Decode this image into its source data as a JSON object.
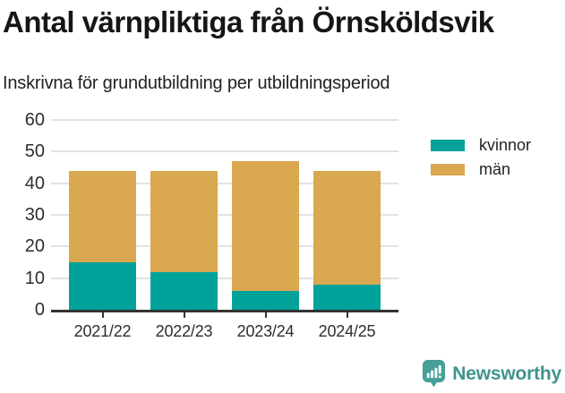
{
  "header": {
    "title": "Antal värnpliktiga från Örnsköldsvik",
    "subtitle": "Inskrivna för grundutbildning per utbildningsperiod"
  },
  "chart_data": {
    "type": "bar",
    "stacked": true,
    "categories": [
      "2021/22",
      "2022/23",
      "2023/24",
      "2024/25"
    ],
    "series": [
      {
        "name": "kvinnor",
        "color": "#00a29a",
        "values": [
          15,
          12,
          6,
          8
        ]
      },
      {
        "name": "män",
        "color": "#d9a850",
        "values": [
          29,
          32,
          41,
          36
        ]
      }
    ],
    "stack_totals": [
      44,
      44,
      47,
      44
    ],
    "title": "Antal värnpliktiga från Örnsköldsvik",
    "subtitle": "Inskrivna för grundutbildning per utbildningsperiod",
    "xlabel": "",
    "ylabel": "",
    "ylim": [
      0,
      60
    ],
    "yticks": [
      0,
      10,
      20,
      30,
      40,
      50,
      60
    ],
    "grid": true,
    "legend_position": "top-right"
  },
  "footer": {
    "brand": "Newsworthy"
  },
  "colors": {
    "kvinnor": "#00a29a",
    "man": "#d9a850",
    "grid": "#e2e2e2",
    "axis": "#333333",
    "logo_badge": "#46a097",
    "logo_text": "#3f948c"
  }
}
